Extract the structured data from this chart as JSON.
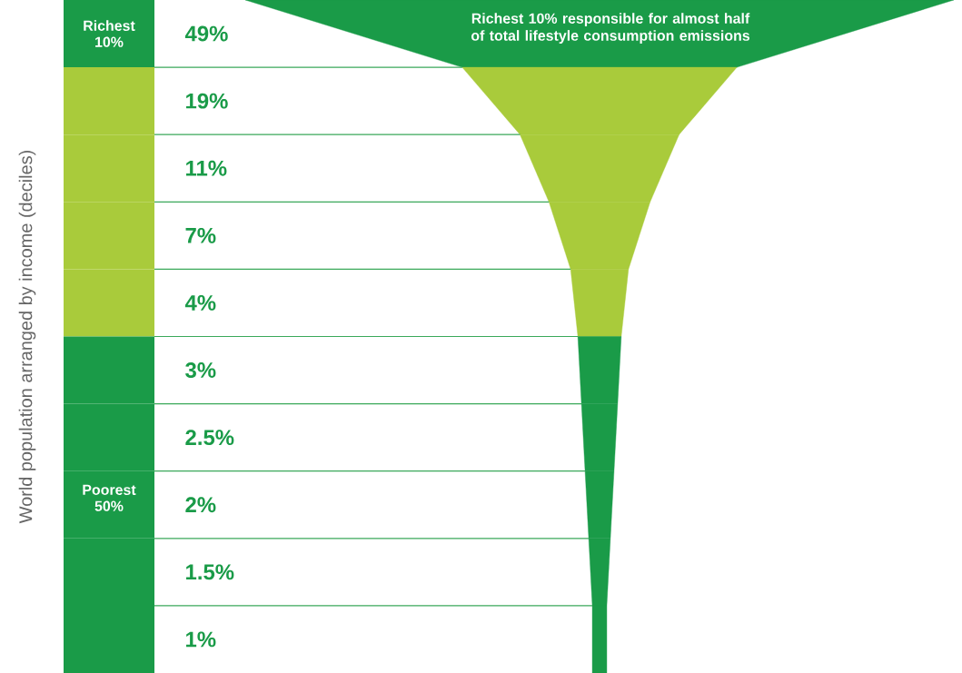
{
  "chart_data": {
    "type": "other",
    "ylabel": "World population arranged by income (deciles)",
    "categories": [
      "Richest 10%",
      null,
      null,
      null,
      null,
      null,
      null,
      null,
      null,
      null
    ],
    "values": [
      49,
      19,
      11,
      7,
      4,
      3,
      2.5,
      2,
      1.5,
      1
    ],
    "value_labels": [
      "49%",
      "19%",
      "11%",
      "7%",
      "4%",
      "3%",
      "2.5%",
      "2%",
      "1.5%",
      "1%"
    ],
    "colors": [
      "#1a9b48",
      "#a9cb3b",
      "#a9cb3b",
      "#a9cb3b",
      "#a9cb3b",
      "#1a9b48",
      "#1a9b48",
      "#1a9b48",
      "#1a9b48",
      "#1a9b48"
    ],
    "annotations": [
      "Richest 10% responsible for almost half of total lifestyle consumption emissions",
      "Poorest 50%"
    ]
  }
}
